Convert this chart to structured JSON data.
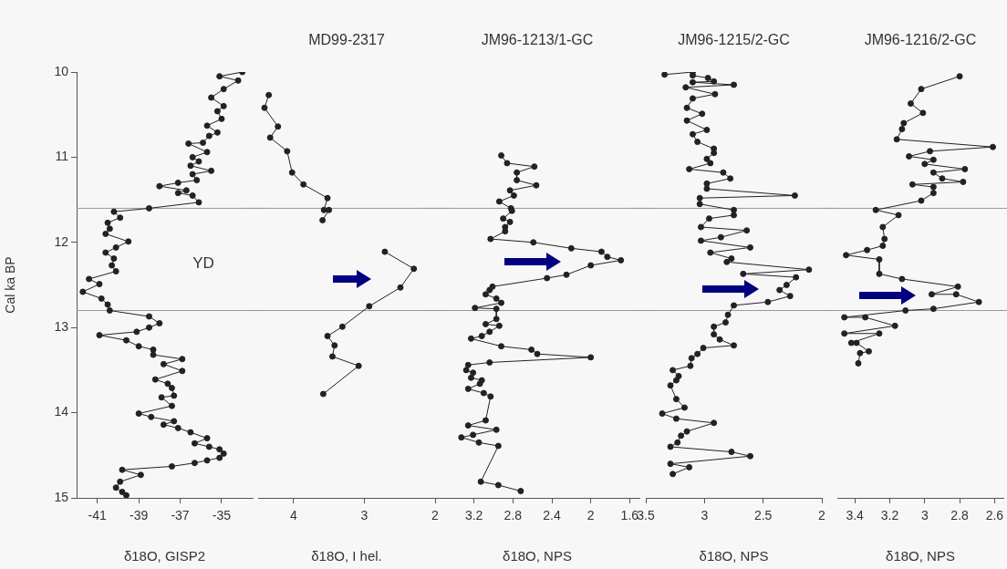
{
  "chart_data": [
    {
      "type": "line",
      "xlabel": "δ18O, GISP2",
      "ylabel": "Cal ka BP",
      "xlim": [
        -42,
        -33.5
      ],
      "xticks": [
        -41,
        -39,
        -37,
        -35
      ],
      "ylim": [
        15,
        10
      ],
      "yticks": [
        10,
        11,
        12,
        13,
        14,
        15
      ],
      "grid": false,
      "marker": "circle",
      "line_style": "solid",
      "ref_lines": [
        {
          "axis": "y",
          "value": 11.6,
          "color": "#999999"
        },
        {
          "axis": "y",
          "value": 12.8,
          "color": "#999999"
        }
      ],
      "annotations": [
        "YD"
      ],
      "series": [
        {
          "color": "#222222",
          "x": [
            -34.0,
            -35.1,
            -34.2,
            -34.9,
            -35.5,
            -34.9,
            -35.2,
            -35.0,
            -35.7,
            -35.2,
            -35.6,
            -35.9,
            -36.6,
            -35.7,
            -36.4,
            -36.1,
            -36.5,
            -35.5,
            -36.4,
            -36.2,
            -37.1,
            -38.0,
            -36.7,
            -37.1,
            -36.4,
            -36.1,
            -38.5,
            -40.2,
            -39.9,
            -40.5,
            -40.4,
            -40.6,
            -39.5,
            -40.1,
            -40.6,
            -40.2,
            -40.3,
            -40.1,
            -41.4,
            -40.9,
            -41.7,
            -40.8,
            -40.5,
            -40.4,
            -38.5,
            -38.0,
            -38.5,
            -39.1,
            -40.9,
            -39.6,
            -39.0,
            -38.3,
            -38.3,
            -36.9,
            -37.8,
            -36.9,
            -38.2,
            -37.6,
            -37.4,
            -37.3,
            -37.9,
            -37.4,
            -39.0,
            -38.4,
            -37.3,
            -37.8,
            -37.1,
            -36.5,
            -35.7,
            -36.3,
            -35.6,
            -35.1,
            -34.9,
            -35.1,
            -35.7,
            -36.3,
            -37.4,
            -39.8,
            -38.9,
            -39.9,
            -40.1,
            -39.8,
            -39.6
          ],
          "values": [
            10.0,
            10.05,
            10.1,
            10.2,
            10.3,
            10.4,
            10.46,
            10.55,
            10.63,
            10.71,
            10.75,
            10.83,
            10.84,
            10.94,
            11.0,
            11.05,
            11.1,
            11.16,
            11.2,
            11.27,
            11.3,
            11.34,
            11.39,
            11.42,
            11.45,
            11.53,
            11.6,
            11.64,
            11.71,
            11.77,
            11.84,
            11.9,
            11.99,
            12.06,
            12.12,
            12.19,
            12.27,
            12.34,
            12.43,
            12.49,
            12.58,
            12.66,
            12.73,
            12.8,
            12.87,
            12.95,
            13.0,
            13.05,
            13.09,
            13.15,
            13.22,
            13.26,
            13.32,
            13.37,
            13.43,
            13.51,
            13.61,
            13.66,
            13.71,
            13.8,
            13.82,
            13.92,
            14.01,
            14.05,
            14.1,
            14.14,
            14.18,
            14.23,
            14.3,
            14.36,
            14.4,
            14.43,
            14.48,
            14.53,
            14.56,
            14.59,
            14.63,
            14.67,
            14.73,
            14.81,
            14.88,
            14.93,
            14.97
          ]
        }
      ],
      "tick_labels": "xy"
    },
    {
      "type": "line",
      "title": "MD99-2317",
      "xlabel": "δ18O, I hel.",
      "xlim": [
        4.5,
        2
      ],
      "xticks": [
        4,
        3,
        2
      ],
      "ylim": [
        15,
        10
      ],
      "yticks": [
        10,
        11,
        12,
        13,
        14,
        15
      ],
      "grid": false,
      "marker": "circle",
      "line_style": "solid",
      "tick_labels": "x",
      "ref_lines": [
        {
          "axis": "y",
          "value": 11.6,
          "color": "#999999"
        },
        {
          "axis": "y",
          "value": 12.8,
          "color": "#999999"
        }
      ],
      "series": [
        {
          "color": "#222222",
          "x": [
            4.35,
            4.41,
            4.22,
            4.33,
            4.09,
            4.02,
            3.86,
            3.52,
            3.57,
            3.5,
            3.59,
            null,
            2.71,
            2.3,
            2.49,
            2.93,
            3.31,
            3.52,
            3.42,
            3.45,
            3.08,
            3.58
          ],
          "values": [
            10.27,
            10.42,
            10.64,
            10.77,
            10.93,
            11.18,
            11.32,
            11.48,
            11.62,
            11.62,
            11.74,
            null,
            12.11,
            12.31,
            12.53,
            12.75,
            12.99,
            13.1,
            13.21,
            13.34,
            13.45,
            13.78
          ]
        }
      ]
    },
    {
      "type": "line",
      "title": "JM96-1213/1-GC",
      "xlabel": "δ18O, NPS",
      "xlim": [
        3.6,
        1.5
      ],
      "xticks": [
        3.2,
        2.8,
        2.4,
        2,
        1.6
      ],
      "ylim": [
        15,
        10
      ],
      "yticks": [
        10,
        11,
        12,
        13,
        14,
        15
      ],
      "grid": false,
      "marker": "circle",
      "line_style": "solid",
      "tick_labels": "x",
      "ref_lines": [
        {
          "axis": "y",
          "value": 11.6,
          "color": "#999999"
        },
        {
          "axis": "y",
          "value": 12.8,
          "color": "#999999"
        }
      ],
      "series": [
        {
          "color": "#222222",
          "x": [
            2.92,
            2.86,
            2.58,
            2.76,
            2.76,
            2.56,
            2.83,
            2.79,
            2.94,
            2.82,
            2.81,
            2.9,
            2.83,
            2.88,
            2.88,
            3.03,
            2.59,
            2.2,
            1.89,
            1.83,
            1.69,
            2.0,
            2.25,
            2.45,
            3.01,
            3.04,
            3.08,
            2.97,
            2.92,
            3.19,
            2.97,
            2.97,
            3.08,
            2.94,
            3.04,
            3.12,
            3.23,
            2.92,
            2.61,
            2.55,
            2.0,
            3.04,
            3.26,
            3.28,
            3.21,
            3.23,
            3.12,
            3.14,
            3.26,
            3.1,
            3.03,
            3.08,
            3.26,
            2.97,
            3.21,
            3.33,
            3.15,
            2.95,
            3.13,
            2.95,
            2.72
          ],
          "values": [
            10.98,
            11.07,
            11.11,
            11.18,
            11.27,
            11.33,
            11.39,
            11.45,
            11.52,
            11.6,
            11.63,
            11.72,
            11.76,
            11.82,
            11.87,
            11.96,
            12.0,
            12.07,
            12.11,
            12.17,
            12.21,
            12.27,
            12.38,
            12.42,
            12.52,
            12.56,
            12.61,
            12.66,
            12.71,
            12.77,
            12.78,
            12.9,
            12.96,
            12.98,
            13.05,
            13.1,
            13.13,
            13.22,
            13.26,
            13.31,
            13.35,
            13.41,
            13.44,
            13.5,
            13.53,
            13.59,
            13.62,
            13.66,
            13.72,
            13.77,
            13.81,
            14.09,
            14.15,
            14.2,
            14.26,
            14.29,
            14.35,
            14.39,
            14.81,
            14.85,
            14.92
          ]
        }
      ]
    },
    {
      "type": "line",
      "title": "JM96-1215/2-GC",
      "xlabel": "δ18O, NPS",
      "xlim": [
        3.5,
        2
      ],
      "xticks": [
        3.5,
        3,
        2.5,
        2
      ],
      "ylim": [
        15,
        10
      ],
      "yticks": [
        10,
        11,
        12,
        13,
        14,
        15
      ],
      "grid": false,
      "marker": "circle",
      "line_style": "solid",
      "tick_labels": "x",
      "ref_lines": [
        {
          "axis": "y",
          "value": 11.6,
          "color": "#999999"
        },
        {
          "axis": "y",
          "value": 12.8,
          "color": "#999999"
        }
      ],
      "series": [
        {
          "color": "#222222",
          "x": [
            3.34,
            3.1,
            3.1,
            2.97,
            2.92,
            3.1,
            2.75,
            3.16,
            2.91,
            3.1,
            3.15,
            3.02,
            3.15,
            2.98,
            3.1,
            3.06,
            2.92,
            2.92,
            2.98,
            2.95,
            3.13,
            2.84,
            2.78,
            2.98,
            2.98,
            2.23,
            3.04,
            3.04,
            2.75,
            2.75,
            2.96,
            3.03,
            2.64,
            2.86,
            3.03,
            2.61,
            2.95,
            2.77,
            2.81,
            2.11,
            2.67,
            2.22,
            2.3,
            2.36,
            2.27,
            2.46,
            2.75,
            2.8,
            2.82,
            2.92,
            2.92,
            2.87,
            2.75,
            3.01,
            3.06,
            3.11,
            3.12,
            3.27,
            3.22,
            3.24,
            3.29,
            3.24,
            3.17,
            3.36,
            3.24,
            2.92,
            3.15,
            3.2,
            3.23,
            3.29,
            2.77,
            2.61,
            3.29,
            3.13,
            3.27
          ],
          "values": [
            10.03,
            10.0,
            10.04,
            10.07,
            10.11,
            10.12,
            10.15,
            10.18,
            10.26,
            10.31,
            10.42,
            10.49,
            10.57,
            10.68,
            10.73,
            10.82,
            10.9,
            10.95,
            11.02,
            11.07,
            11.14,
            11.18,
            11.25,
            11.31,
            11.37,
            11.45,
            11.48,
            11.55,
            11.62,
            11.68,
            11.72,
            11.82,
            11.86,
            11.94,
            11.98,
            12.06,
            12.12,
            12.19,
            12.23,
            12.32,
            12.37,
            12.41,
            12.5,
            12.56,
            12.63,
            12.7,
            12.74,
            12.85,
            12.94,
            12.99,
            13.08,
            13.14,
            13.21,
            13.24,
            13.31,
            13.36,
            13.45,
            13.5,
            13.57,
            13.62,
            13.68,
            13.84,
            13.94,
            14.01,
            14.07,
            14.12,
            14.22,
            14.27,
            14.35,
            14.4,
            14.46,
            14.51,
            14.6,
            14.64,
            14.72
          ]
        }
      ]
    },
    {
      "type": "line",
      "title": "JM96-1216/2-GC",
      "xlabel": "δ18O, NPS",
      "xlim": [
        3.5,
        2.55
      ],
      "xticks": [
        3.4,
        3.2,
        3,
        2.8,
        2.6
      ],
      "ylim": [
        15,
        10
      ],
      "yticks": [
        10,
        11,
        12,
        13,
        14,
        15
      ],
      "grid": false,
      "marker": "circle",
      "line_style": "solid",
      "tick_labels": "x",
      "ref_lines": [
        {
          "axis": "y",
          "value": 11.6,
          "color": "#999999"
        },
        {
          "axis": "y",
          "value": 12.8,
          "color": "#999999"
        }
      ],
      "series": [
        {
          "color": "#222222",
          "x": [
            2.8,
            3.02,
            3.08,
            3.01,
            3.12,
            3.13,
            3.16,
            2.61,
            2.97,
            3.09,
            2.95,
            3.0,
            2.77,
            2.95,
            2.9,
            2.78,
            3.07,
            2.95,
            2.95,
            3.02,
            3.28,
            3.15,
            3.24,
            3.23,
            3.24,
            3.33,
            3.45,
            3.26,
            3.26,
            3.13,
            2.81,
            2.96,
            2.82,
            2.69,
            2.95,
            3.11,
            3.46,
            3.34,
            3.17,
            3.46,
            3.26,
            3.42,
            3.39,
            3.32,
            3.37,
            3.38
          ],
          "values": [
            10.05,
            10.2,
            10.37,
            10.48,
            10.6,
            10.67,
            10.79,
            10.88,
            10.93,
            10.99,
            11.03,
            11.08,
            11.14,
            11.18,
            11.25,
            11.29,
            11.32,
            11.35,
            11.42,
            11.51,
            11.62,
            11.68,
            11.82,
            11.96,
            12.04,
            12.09,
            12.15,
            12.2,
            12.37,
            12.43,
            12.52,
            12.61,
            12.61,
            12.7,
            12.78,
            12.8,
            12.88,
            12.88,
            12.98,
            13.07,
            13.07,
            13.18,
            13.18,
            13.28,
            13.3,
            13.42
          ]
        }
      ]
    }
  ]
}
